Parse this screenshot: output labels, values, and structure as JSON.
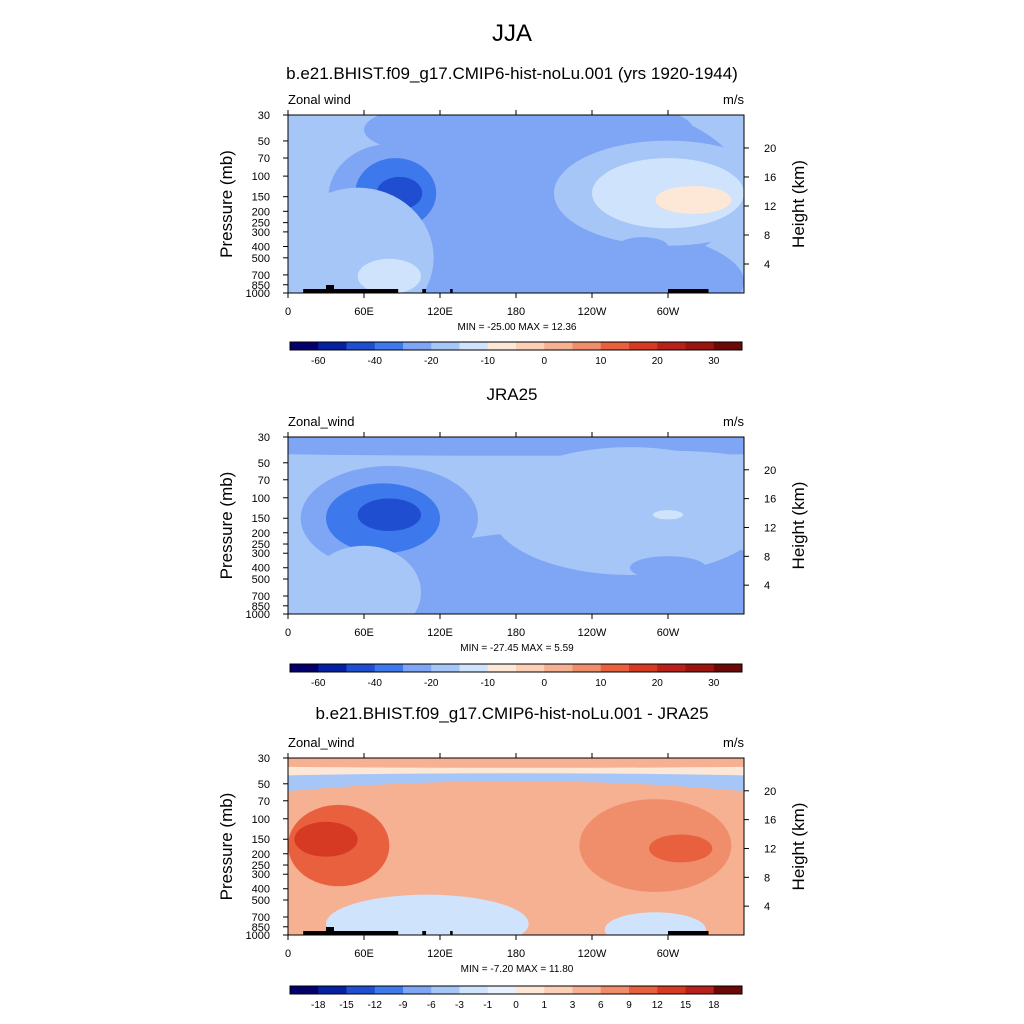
{
  "figure": {
    "title": "JJA"
  },
  "colors": {
    "lon_label_color": "#000000"
  },
  "chart_data": [
    {
      "type": "heatmap",
      "title": "b.e21.BHIST.f09_g17.CMIP6-hist-noLu.001 (yrs 1920-1944)",
      "left_label": "Zonal wind",
      "units": "m/s",
      "ylabel": "Pressure (mb)",
      "ylabel_right": "Height (km)",
      "x_ticks": [
        "0",
        "60E",
        "120E",
        "180",
        "120W",
        "60W"
      ],
      "y_ticks": [
        "30",
        "50",
        "70",
        "100",
        "150",
        "200",
        "250",
        "300",
        "400",
        "500",
        "700",
        "850",
        "1000"
      ],
      "y_ticks_right": [
        "20",
        "16",
        "12",
        "8",
        "4"
      ],
      "stats": "MIN = -25.00  MAX =  12.36",
      "colorbar_labels": [
        "-60",
        "-40",
        "-20",
        "-10",
        "0",
        "10",
        "20",
        "30"
      ],
      "colorbar_colors": [
        "#03006e",
        "#0520a0",
        "#1f4fd0",
        "#3d78ec",
        "#7ea6f4",
        "#a6c6f8",
        "#cfe3fc",
        "#fde7d6",
        "#fbd0b6",
        "#f6b092",
        "#f08e6c",
        "#e8603e",
        "#d63a22",
        "#b8211a",
        "#9a1510",
        "#6d0808"
      ],
      "blobs": [
        {
          "lon": 180,
          "p": 800,
          "rx": 180,
          "ry": 0.55,
          "value": -3
        },
        {
          "lon": 230,
          "p": 130,
          "rx": 130,
          "ry": 0.75,
          "value": -3
        },
        {
          "lon": 190,
          "p": 40,
          "rx": 130,
          "ry": 0.3,
          "value": -3
        },
        {
          "lon": 80,
          "p": 150,
          "rx": 48,
          "ry": 0.45,
          "value": -7
        },
        {
          "lon": 85,
          "p": 140,
          "rx": 32,
          "ry": 0.3,
          "value": -15
        },
        {
          "lon": 88,
          "p": 140,
          "rx": 18,
          "ry": 0.14,
          "value": -28
        },
        {
          "lon": 55,
          "p": 500,
          "rx": 60,
          "ry": 0.6,
          "value": 7
        },
        {
          "lon": 80,
          "p": 720,
          "rx": 25,
          "ry": 0.15,
          "value": 12
        },
        {
          "lon": 300,
          "p": 140,
          "rx": 90,
          "ry": 0.45,
          "value": 8
        },
        {
          "lon": 300,
          "p": 140,
          "rx": 60,
          "ry": 0.3,
          "value": 12
        },
        {
          "lon": 320,
          "p": 160,
          "rx": 30,
          "ry": 0.12,
          "value": 22
        },
        {
          "lon": 280,
          "p": 400,
          "rx": 20,
          "ry": 0.08,
          "value": -2
        }
      ]
    },
    {
      "type": "heatmap",
      "title": "JRA25",
      "left_label": "Zonal_wind",
      "units": "m/s",
      "ylabel": "Pressure (mb)",
      "ylabel_right": "Height (km)",
      "x_ticks": [
        "0",
        "60E",
        "120E",
        "180",
        "120W",
        "60W"
      ],
      "y_ticks": [
        "30",
        "50",
        "70",
        "100",
        "150",
        "200",
        "250",
        "300",
        "400",
        "500",
        "700",
        "850",
        "1000"
      ],
      "y_ticks_right": [
        "20",
        "16",
        "12",
        "8",
        "4"
      ],
      "stats": "MIN = -27.45  MAX =   5.59",
      "colorbar_labels": [
        "-60",
        "-40",
        "-20",
        "-10",
        "0",
        "10",
        "20",
        "30"
      ],
      "colorbar_colors": [
        "#03006e",
        "#0520a0",
        "#1f4fd0",
        "#3d78ec",
        "#7ea6f4",
        "#a6c6f8",
        "#cfe3fc",
        "#fde7d6",
        "#fbd0b6",
        "#f6b092",
        "#f08e6c",
        "#e8603e",
        "#d63a22",
        "#b8211a",
        "#9a1510",
        "#6d0808"
      ],
      "blobs": [
        {
          "lon": 180,
          "p": 33,
          "rx": 400,
          "ry": 0.12,
          "value": -3
        },
        {
          "lon": 230,
          "p": 600,
          "rx": 170,
          "ry": 0.5,
          "value": -3
        },
        {
          "lon": 270,
          "p": 130,
          "rx": 110,
          "ry": 0.55,
          "value": 7
        },
        {
          "lon": 300,
          "p": 70,
          "rx": 100,
          "ry": 0.25,
          "value": 7
        },
        {
          "lon": 80,
          "p": 150,
          "rx": 70,
          "ry": 0.45,
          "value": -4
        },
        {
          "lon": 75,
          "p": 150,
          "rx": 45,
          "ry": 0.3,
          "value": -12
        },
        {
          "lon": 80,
          "p": 140,
          "rx": 25,
          "ry": 0.14,
          "value": -28
        },
        {
          "lon": 60,
          "p": 650,
          "rx": 45,
          "ry": 0.4,
          "value": 5
        },
        {
          "lon": 300,
          "p": 400,
          "rx": 30,
          "ry": 0.1,
          "value": -2
        },
        {
          "lon": 300,
          "p": 140,
          "rx": 12,
          "ry": 0.04,
          "value": 11
        }
      ]
    },
    {
      "type": "heatmap",
      "title": "b.e21.BHIST.f09_g17.CMIP6-hist-noLu.001 - JRA25",
      "left_label": "Zonal_wind",
      "units": "m/s",
      "ylabel": "Pressure (mb)",
      "ylabel_right": "Height (km)",
      "x_ticks": [
        "0",
        "60E",
        "120E",
        "180",
        "120W",
        "60W"
      ],
      "y_ticks": [
        "30",
        "50",
        "70",
        "100",
        "150",
        "200",
        "250",
        "300",
        "400",
        "500",
        "700",
        "850",
        "1000"
      ],
      "y_ticks_right": [
        "20",
        "16",
        "12",
        "8",
        "4"
      ],
      "stats": "MIN =  -7.20  MAX =  11.80",
      "colorbar_labels": [
        "-18",
        "-15",
        "-12",
        "-9",
        "-6",
        "-3",
        "-1",
        "0",
        "1",
        "3",
        "6",
        "9",
        "12",
        "15",
        "18"
      ],
      "colorbar_colors": [
        "#03006e",
        "#0520a0",
        "#1f4fd0",
        "#3d78ec",
        "#7ea6f4",
        "#a6c6f8",
        "#cfe3fc",
        "#e8f1fd",
        "#fde7d6",
        "#fbd0b6",
        "#f6b092",
        "#f08e6c",
        "#e8603e",
        "#d63a22",
        "#b8211a",
        "#6d0808"
      ],
      "blobs": [
        {
          "lon": 180,
          "p": 31,
          "rx": 400,
          "ry": 0.07,
          "value": 5
        },
        {
          "lon": 180,
          "p": 60,
          "rx": 400,
          "ry": 0.17,
          "value": -5
        },
        {
          "lon": 190,
          "p": 62,
          "rx": 50,
          "ry": 0.05,
          "value": -8
        },
        {
          "lon": 180,
          "p": 300,
          "rx": 400,
          "ry": 0.8,
          "value": 4
        },
        {
          "lon": 40,
          "p": 170,
          "rx": 40,
          "ry": 0.35,
          "value": 9
        },
        {
          "lon": 30,
          "p": 150,
          "rx": 25,
          "ry": 0.15,
          "value": 12
        },
        {
          "lon": 290,
          "p": 170,
          "rx": 60,
          "ry": 0.4,
          "value": 7
        },
        {
          "lon": 310,
          "p": 180,
          "rx": 25,
          "ry": 0.12,
          "value": 10
        },
        {
          "lon": 110,
          "p": 800,
          "rx": 80,
          "ry": 0.25,
          "value": -3
        },
        {
          "lon": 290,
          "p": 900,
          "rx": 40,
          "ry": 0.15,
          "value": -3
        }
      ]
    }
  ]
}
